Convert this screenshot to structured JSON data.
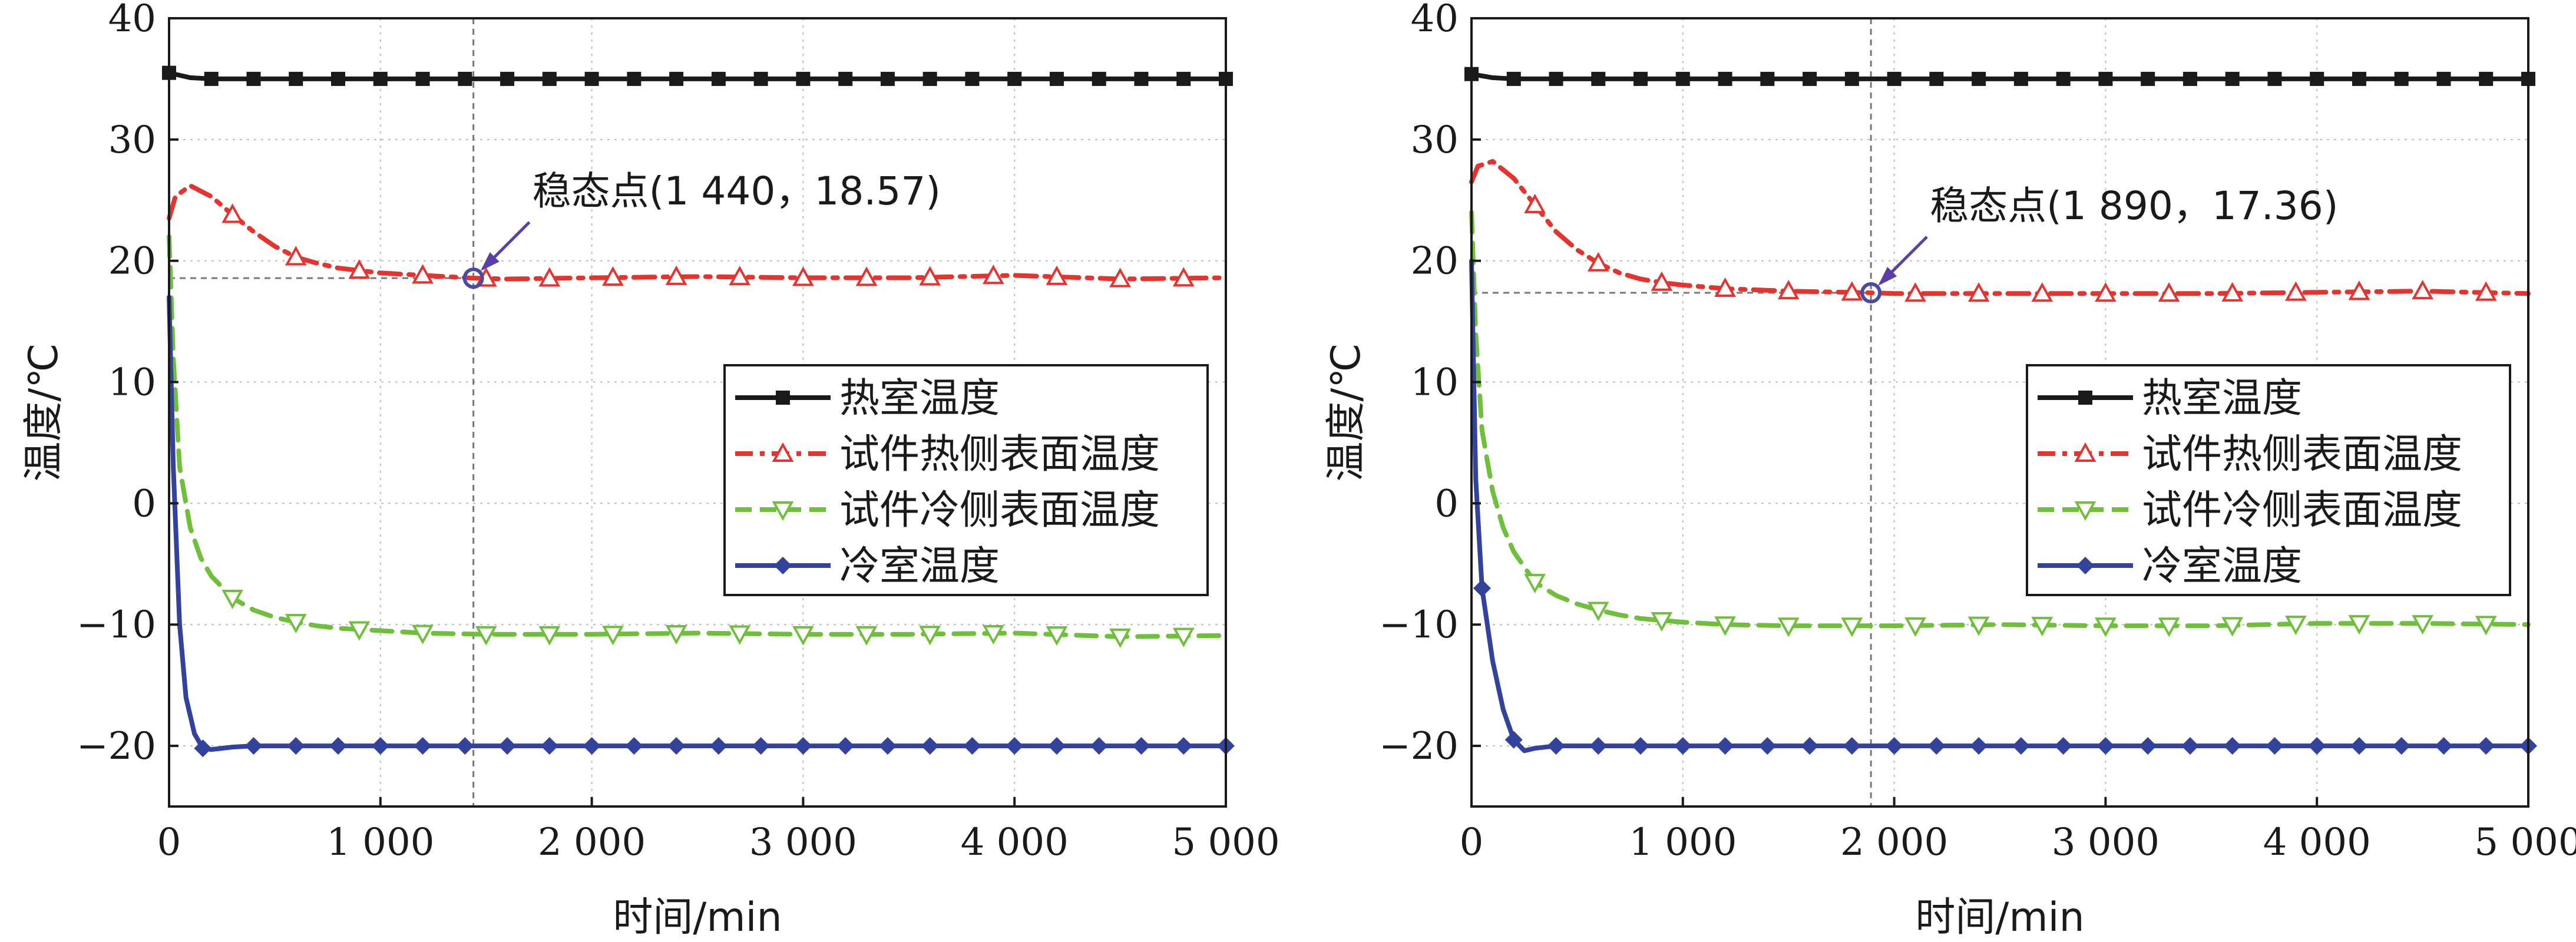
{
  "charts": [
    {
      "type": "line",
      "xlabel": "时间/min",
      "ylabel": "温度/℃",
      "xlim": [
        0,
        5000
      ],
      "ylim": [
        -25,
        40
      ],
      "x_ticks": [
        0,
        1000,
        2000,
        3000,
        4000,
        5000
      ],
      "x_tick_labels": [
        "0",
        "1 000",
        "2 000",
        "3 000",
        "4 000",
        "5 000"
      ],
      "y_ticks": [
        -20,
        -10,
        0,
        10,
        20,
        30,
        40
      ],
      "y_tick_labels": [
        "−20",
        "−10",
        "0",
        "10",
        "20",
        "30",
        "40"
      ],
      "grid": true,
      "legend_position": "right",
      "steady_point": {
        "label": "稳态点(1 440，18.57)",
        "x": 1440,
        "y": 18.57
      },
      "series": [
        {
          "name": "热室温度",
          "color": "#1a1a1a",
          "style": "solid",
          "marker": "square",
          "x": [
            0,
            100,
            200,
            400,
            600,
            1000,
            2000,
            3000,
            4000,
            5000
          ],
          "y": [
            35.5,
            35.1,
            35.0,
            35.0,
            35.0,
            35.0,
            35.0,
            35.0,
            35.0,
            35.0
          ]
        },
        {
          "name": "试件热侧表面温度",
          "color": "#e3342f",
          "style": "dashdot",
          "marker": "triangle-up",
          "x": [
            0,
            30,
            100,
            200,
            300,
            400,
            500,
            600,
            700,
            800,
            900,
            1000,
            1200,
            1440,
            1600,
            2000,
            2500,
            3000,
            3500,
            4000,
            4500,
            5000
          ],
          "y": [
            23.5,
            25.3,
            26.2,
            25.3,
            23.8,
            22.4,
            21.2,
            20.3,
            19.8,
            19.4,
            19.2,
            19.0,
            18.8,
            18.57,
            18.5,
            18.6,
            18.7,
            18.6,
            18.6,
            18.8,
            18.5,
            18.6
          ]
        },
        {
          "name": "试件冷侧表面温度",
          "color": "#6fbf3c",
          "style": "dashed",
          "marker": "triangle-down",
          "x": [
            0,
            20,
            50,
            100,
            150,
            200,
            300,
            400,
            500,
            600,
            700,
            800,
            1000,
            1200,
            1500,
            2000,
            2500,
            3000,
            3500,
            4000,
            4500,
            5000
          ],
          "y": [
            22,
            12,
            3,
            -2,
            -4.5,
            -6,
            -7.8,
            -8.8,
            -9.4,
            -9.8,
            -10.1,
            -10.3,
            -10.5,
            -10.7,
            -10.8,
            -10.8,
            -10.7,
            -10.8,
            -10.8,
            -10.7,
            -11.0,
            -10.9
          ]
        },
        {
          "name": "冷室温度",
          "color": "#33429a",
          "style": "solid",
          "marker": "diamond",
          "x": [
            0,
            20,
            50,
            80,
            120,
            160,
            200,
            300,
            400,
            600,
            1000,
            2000,
            3000,
            4000,
            5000
          ],
          "y": [
            17,
            3,
            -10,
            -16,
            -19,
            -20.2,
            -20.3,
            -20.1,
            -20.0,
            -20.0,
            -20.0,
            -20.0,
            -20.0,
            -20.0,
            -20.0
          ]
        }
      ]
    },
    {
      "type": "line",
      "xlabel": "时间/min",
      "ylabel": "温度/℃",
      "xlim": [
        0,
        5000
      ],
      "ylim": [
        -25,
        40
      ],
      "x_ticks": [
        0,
        1000,
        2000,
        3000,
        4000,
        5000
      ],
      "x_tick_labels": [
        "0",
        "1 000",
        "2 000",
        "3 000",
        "4 000",
        "5 000"
      ],
      "y_ticks": [
        -20,
        -10,
        0,
        10,
        20,
        30,
        40
      ],
      "y_tick_labels": [
        "−20",
        "−10",
        "0",
        "10",
        "20",
        "30",
        "40"
      ],
      "grid": true,
      "legend_position": "right",
      "steady_point": {
        "label": "稳态点(1 890，17.36)",
        "x": 1890,
        "y": 17.36
      },
      "series": [
        {
          "name": "热室温度",
          "color": "#1a1a1a",
          "style": "solid",
          "marker": "square",
          "x": [
            0,
            100,
            200,
            400,
            600,
            1000,
            2000,
            3000,
            4000,
            5000
          ],
          "y": [
            35.4,
            35.1,
            35.0,
            35.0,
            35.0,
            35.0,
            35.0,
            35.0,
            35.0,
            35.0
          ]
        },
        {
          "name": "试件热侧表面温度",
          "color": "#e3342f",
          "style": "dashdot",
          "marker": "triangle-up",
          "x": [
            0,
            30,
            100,
            200,
            300,
            400,
            500,
            600,
            700,
            800,
            900,
            1000,
            1200,
            1500,
            1890,
            2000,
            2500,
            3000,
            3500,
            4000,
            4500,
            5000
          ],
          "y": [
            26.5,
            27.8,
            28.2,
            26.8,
            24.6,
            22.4,
            20.9,
            19.8,
            19.0,
            18.5,
            18.2,
            18.0,
            17.7,
            17.5,
            17.36,
            17.3,
            17.3,
            17.3,
            17.3,
            17.4,
            17.5,
            17.3
          ]
        },
        {
          "name": "试件冷侧表面温度",
          "color": "#6fbf3c",
          "style": "dashed",
          "marker": "triangle-down",
          "x": [
            0,
            20,
            50,
            100,
            150,
            200,
            300,
            400,
            500,
            600,
            700,
            800,
            1000,
            1200,
            1500,
            2000,
            2500,
            3000,
            3500,
            4000,
            4500,
            5000
          ],
          "y": [
            24,
            14,
            6,
            1,
            -2,
            -4,
            -6.5,
            -7.6,
            -8.3,
            -8.8,
            -9.2,
            -9.5,
            -9.8,
            -10.0,
            -10.1,
            -10.1,
            -10.0,
            -10.1,
            -10.1,
            -9.9,
            -9.9,
            -10.0
          ]
        },
        {
          "name": "冷室温度",
          "color": "#33429a",
          "style": "solid",
          "marker": "diamond",
          "x": [
            0,
            20,
            50,
            100,
            150,
            200,
            250,
            300,
            400,
            600,
            1000,
            2000,
            3000,
            4000,
            5000
          ],
          "y": [
            20,
            2,
            -7,
            -13,
            -17,
            -19.5,
            -20.4,
            -20.2,
            -20.0,
            -20.0,
            -20.0,
            -20.0,
            -20.0,
            -20.0,
            -20.0
          ]
        }
      ]
    }
  ]
}
